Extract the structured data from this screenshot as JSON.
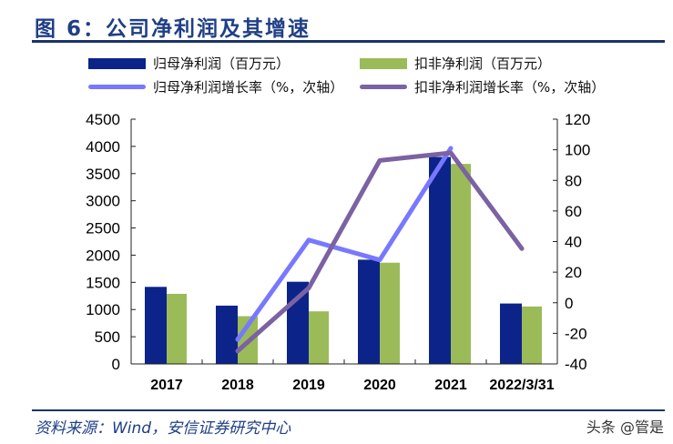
{
  "title": "图 6：公司净利润及其增速",
  "footer": {
    "source": "资料来源：Wind，安信证券研究中心",
    "watermark": "头条 @管是"
  },
  "chart_data": {
    "type": "bar",
    "categories": [
      "2017",
      "2018",
      "2019",
      "2020",
      "2021",
      "2022/3/31"
    ],
    "ylim": [
      0,
      4500
    ],
    "yticks": [
      "0",
      "500",
      "1000",
      "1500",
      "2000",
      "2500",
      "3000",
      "3500",
      "4000",
      "4500"
    ],
    "y2lim": [
      -40,
      120
    ],
    "y2ticks": [
      "-40",
      "-20",
      "0",
      "20",
      "40",
      "60",
      "80",
      "100",
      "120"
    ],
    "grid": false,
    "legend": "top",
    "series": [
      {
        "name": "归母净利润（百万元）",
        "type": "bar",
        "axis": "left",
        "color": "#0c2389",
        "values": [
          1417,
          1072,
          1511,
          1917,
          3806,
          1111
        ]
      },
      {
        "name": "扣非净利润（百万元）",
        "type": "bar",
        "axis": "left",
        "color": "#9bbb59",
        "values": [
          1289,
          878,
          967,
          1861,
          3678,
          1056
        ]
      },
      {
        "name": "归母净利润增长率（%，次轴）",
        "type": "line",
        "axis": "right",
        "color": "#7878ff",
        "values": [
          null,
          -24,
          41,
          28,
          101,
          null
        ]
      },
      {
        "name": "扣非净利润增长率（%，次轴）",
        "type": "line",
        "axis": "right",
        "color": "#7b62a3",
        "values": [
          null,
          -31.5,
          9.6,
          93,
          98,
          35.4
        ]
      }
    ]
  }
}
